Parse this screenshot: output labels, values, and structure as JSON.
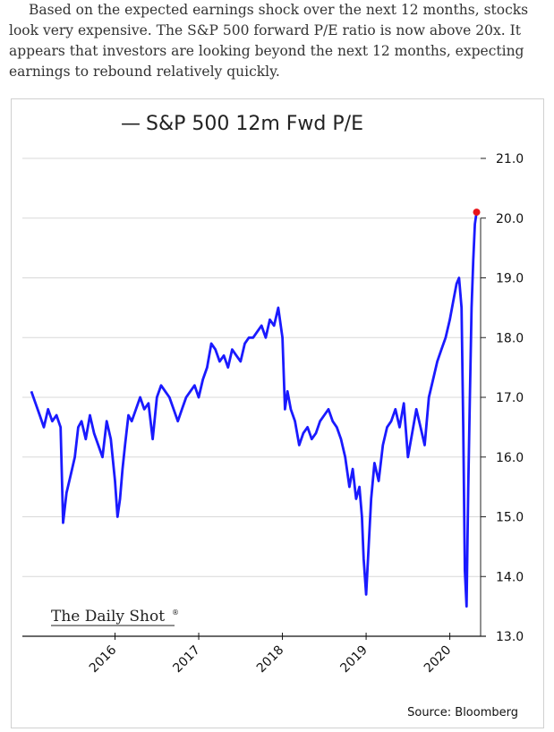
{
  "intro_text": "Based on the expected earnings shock over the next 12 months, stocks look very expensive. The S&P 500 forward P/E ratio is now above 20x. It appears that investors are looking beyond the next 12 months, expecting earnings to rebound relatively quickly.",
  "chart_data": {
    "type": "line",
    "title": "S&P 500 12m Fwd P/E",
    "legend_marker": "—",
    "brand": "The Daily Shot",
    "brand_mark": "®",
    "source": "Source: Bloomberg",
    "xlabel": "",
    "ylabel": "",
    "ylim": [
      13.0,
      21.0
    ],
    "y_ticks": [
      "13.0",
      "14.0",
      "15.0",
      "16.0",
      "17.0",
      "18.0",
      "19.0",
      "20.0",
      "21.0"
    ],
    "x_ticks": [
      "2016",
      "2017",
      "2018",
      "2019",
      "2020"
    ],
    "grid": true,
    "line_color": "#1a1aff",
    "last_point_color": "#e8141b",
    "series": [
      {
        "x": [
          2015.0,
          2015.05,
          2015.1,
          2015.15,
          2015.2,
          2015.25,
          2015.3,
          2015.35,
          2015.38,
          2015.42,
          2015.47,
          2015.52,
          2015.56,
          2015.6,
          2015.65,
          2015.7,
          2015.75,
          2015.8,
          2015.85,
          2015.9,
          2015.95,
          2016.0,
          2016.03,
          2016.06,
          2016.09,
          2016.12,
          2016.16,
          2016.2,
          2016.25,
          2016.3,
          2016.35,
          2016.4,
          2016.45,
          2016.5,
          2016.55,
          2016.6,
          2016.65,
          2016.7,
          2016.75,
          2016.8,
          2016.85,
          2016.9,
          2016.95,
          2017.0,
          2017.05,
          2017.1,
          2017.15,
          2017.2,
          2017.25,
          2017.3,
          2017.35,
          2017.4,
          2017.45,
          2017.5,
          2017.55,
          2017.6,
          2017.65,
          2017.7,
          2017.75,
          2017.8,
          2017.85,
          2017.9,
          2017.95,
          2018.0,
          2018.03,
          2018.06,
          2018.1,
          2018.15,
          2018.2,
          2018.25,
          2018.3,
          2018.35,
          2018.4,
          2018.45,
          2018.5,
          2018.55,
          2018.6,
          2018.65,
          2018.7,
          2018.75,
          2018.8,
          2018.84,
          2018.88,
          2018.92,
          2018.95,
          2018.97,
          2019.0,
          2019.03,
          2019.06,
          2019.1,
          2019.15,
          2019.2,
          2019.25,
          2019.3,
          2019.35,
          2019.4,
          2019.45,
          2019.5,
          2019.55,
          2019.6,
          2019.65,
          2019.7,
          2019.75,
          2019.8,
          2019.85,
          2019.9,
          2019.95,
          2020.0,
          2020.04,
          2020.08,
          2020.11,
          2020.14,
          2020.16,
          2020.18,
          2020.2,
          2020.22,
          2020.24,
          2020.26,
          2020.28,
          2020.3,
          2020.32
        ],
        "y": [
          17.1,
          16.9,
          16.7,
          16.5,
          16.8,
          16.6,
          16.7,
          16.5,
          14.9,
          15.4,
          15.7,
          16.0,
          16.5,
          16.6,
          16.3,
          16.7,
          16.4,
          16.2,
          16.0,
          16.6,
          16.3,
          15.6,
          15.0,
          15.3,
          15.8,
          16.2,
          16.7,
          16.6,
          16.8,
          17.0,
          16.8,
          16.9,
          16.3,
          17.0,
          17.2,
          17.1,
          17.0,
          16.8,
          16.6,
          16.8,
          17.0,
          17.1,
          17.2,
          17.0,
          17.3,
          17.5,
          17.9,
          17.8,
          17.6,
          17.7,
          17.5,
          17.8,
          17.7,
          17.6,
          17.9,
          18.0,
          18.0,
          18.1,
          18.2,
          18.0,
          18.3,
          18.2,
          18.5,
          18.0,
          16.8,
          17.1,
          16.8,
          16.6,
          16.2,
          16.4,
          16.5,
          16.3,
          16.4,
          16.6,
          16.7,
          16.8,
          16.6,
          16.5,
          16.3,
          16.0,
          15.5,
          15.8,
          15.3,
          15.5,
          15.0,
          14.3,
          13.7,
          14.5,
          15.3,
          15.9,
          15.6,
          16.2,
          16.5,
          16.6,
          16.8,
          16.5,
          16.9,
          16.0,
          16.4,
          16.8,
          16.5,
          16.2,
          17.0,
          17.3,
          17.6,
          17.8,
          18.0,
          18.3,
          18.6,
          18.9,
          19.0,
          18.5,
          16.5,
          14.1,
          13.5,
          15.5,
          17.0,
          18.5,
          19.3,
          19.9,
          20.1
        ]
      }
    ]
  }
}
